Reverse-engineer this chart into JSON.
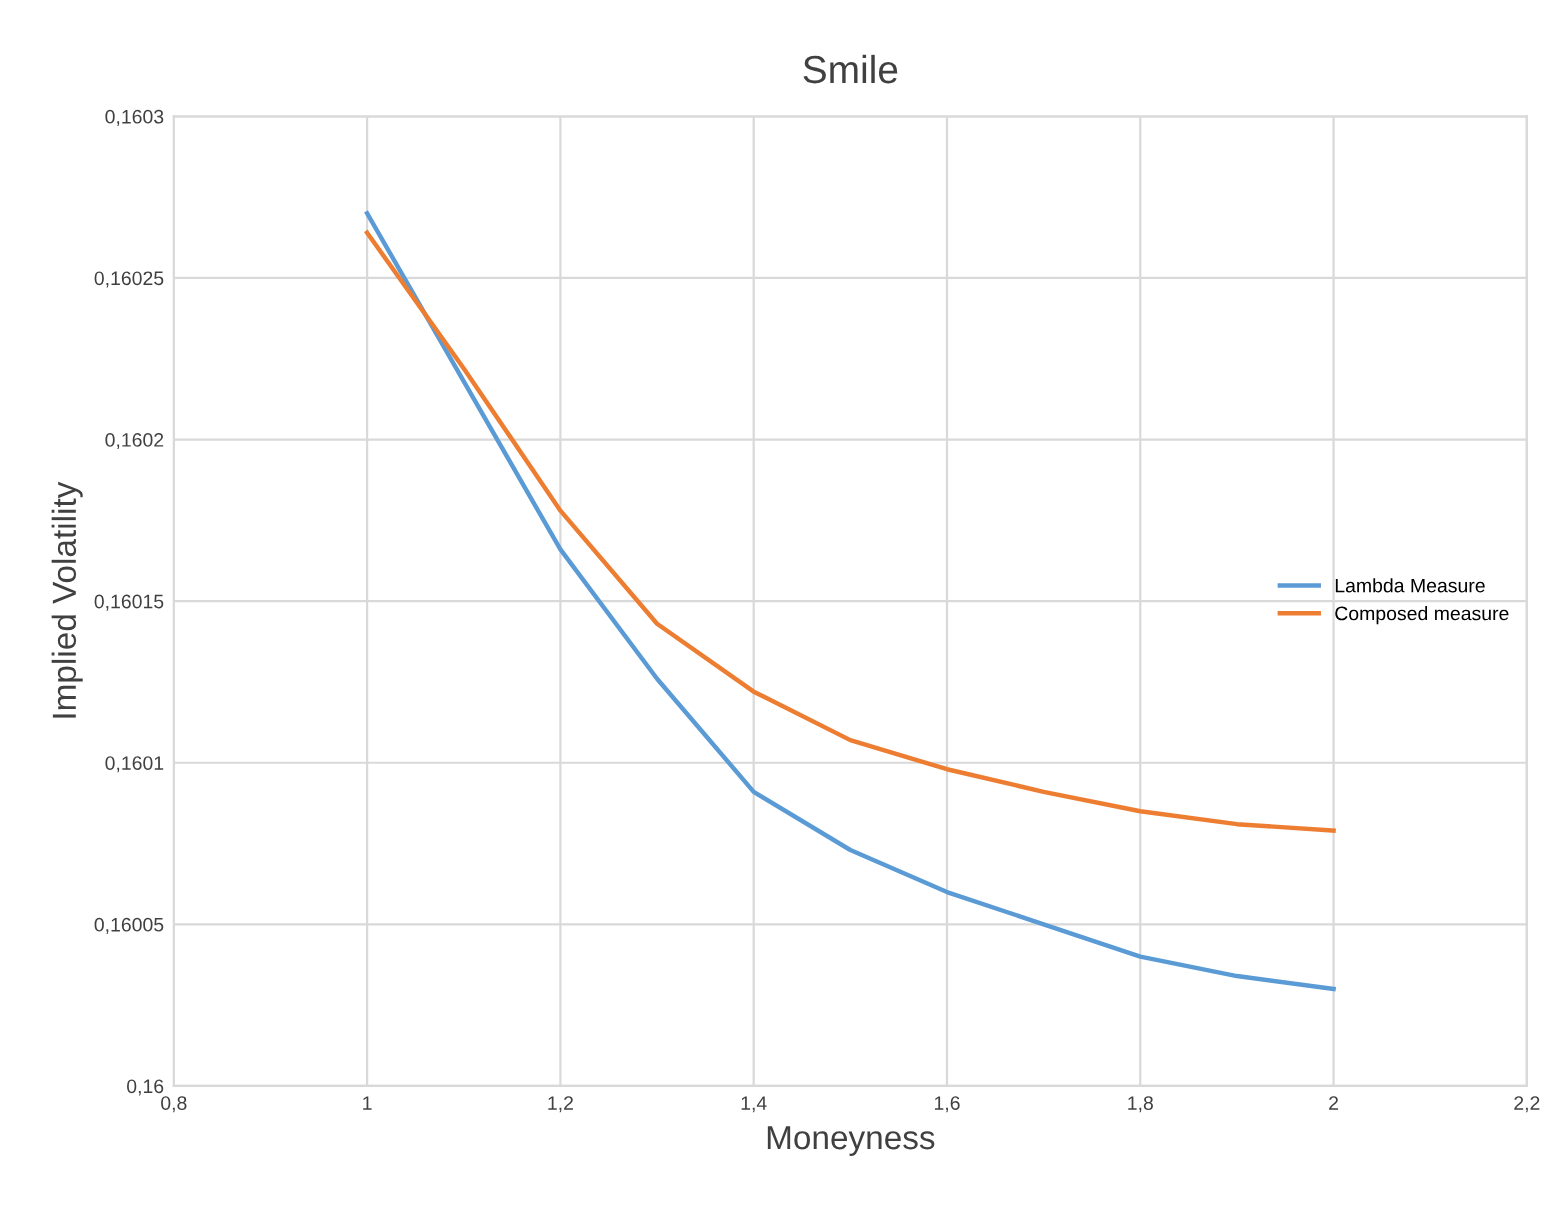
{
  "chart_data": {
    "type": "line",
    "title": "Smile",
    "xlabel": "Moneyness",
    "ylabel": "Implied Volatility",
    "xlim": [
      0.8,
      2.2
    ],
    "xticks": [
      {
        "value": 0.8,
        "label": "0,8"
      },
      {
        "value": 1,
        "label": "1"
      },
      {
        "value": 1.2,
        "label": "1,2"
      },
      {
        "value": 1.4,
        "label": "1,4"
      },
      {
        "value": 1.6,
        "label": "1,6"
      },
      {
        "value": 1.8,
        "label": "1,8"
      },
      {
        "value": 2,
        "label": "2"
      },
      {
        "value": 2.2,
        "label": "2,2"
      }
    ],
    "ylim": [
      0.16,
      0.1603
    ],
    "yticks": [
      {
        "value": 0.16,
        "label": "0,16"
      },
      {
        "value": 0.16005,
        "label": "0,16005"
      },
      {
        "value": 0.1601,
        "label": "0,1601"
      },
      {
        "value": 0.16015,
        "label": "0,16015"
      },
      {
        "value": 0.1602,
        "label": "0,1602"
      },
      {
        "value": 0.16025,
        "label": "0,16025"
      },
      {
        "value": 0.1603,
        "label": "0,1603"
      }
    ],
    "x": [
      1,
      1.1,
      1.2,
      1.3,
      1.4,
      1.5,
      1.6,
      1.7,
      1.8,
      1.9,
      2
    ],
    "series": [
      {
        "name": "Lambda Measure",
        "color": "#5b9bd5",
        "values": [
          0.16027,
          0.160218,
          0.160166,
          0.160126,
          0.160091,
          0.160073,
          0.16006,
          0.16005,
          0.16004,
          0.160034,
          0.16003
        ]
      },
      {
        "name": "Composed measure",
        "color": "#ed7d31",
        "values": [
          0.160264,
          0.160222,
          0.160178,
          0.160143,
          0.160122,
          0.160107,
          0.160098,
          0.160091,
          0.160085,
          0.160081,
          0.160079
        ]
      }
    ],
    "grid": true,
    "legend": "right",
    "marker": "none",
    "line_style": "solid"
  }
}
